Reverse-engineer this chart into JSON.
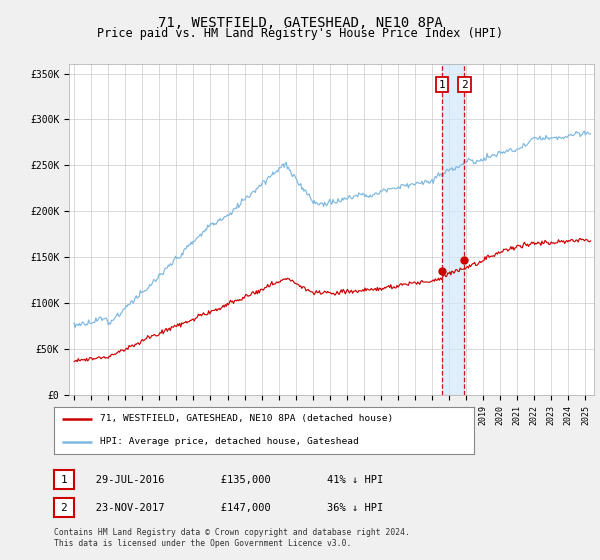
{
  "title": "71, WESTFIELD, GATESHEAD, NE10 8PA",
  "subtitle": "Price paid vs. HM Land Registry's House Price Index (HPI)",
  "title_fontsize": 10,
  "subtitle_fontsize": 8.5,
  "ylim": [
    0,
    360000
  ],
  "yticks": [
    0,
    50000,
    100000,
    150000,
    200000,
    250000,
    300000,
    350000
  ],
  "ytick_labels": [
    "£0",
    "£50K",
    "£100K",
    "£150K",
    "£200K",
    "£250K",
    "£300K",
    "£350K"
  ],
  "hpi_color": "#7db8e0",
  "price_color": "#cc0000",
  "vline_color": "#cc0000",
  "band_color": "#d0e8f8",
  "grid_color": "#cccccc",
  "background_color": "#f0f0f0",
  "plot_bg_color": "#ffffff",
  "sale1_x": 2016.57,
  "sale1_y": 135000,
  "sale1_label": "1",
  "sale2_x": 2017.9,
  "sale2_y": 147000,
  "sale2_label": "2",
  "legend_line1": "71, WESTFIELD, GATESHEAD, NE10 8PA (detached house)",
  "legend_line2": "HPI: Average price, detached house, Gateshead",
  "table_row1": [
    "1",
    "29-JUL-2016",
    "£135,000",
    "41% ↓ HPI"
  ],
  "table_row2": [
    "2",
    "23-NOV-2017",
    "£147,000",
    "36% ↓ HPI"
  ],
  "footnote": "Contains HM Land Registry data © Crown copyright and database right 2024.\nThis data is licensed under the Open Government Licence v3.0.",
  "xmin": 1994.7,
  "xmax": 2025.5
}
